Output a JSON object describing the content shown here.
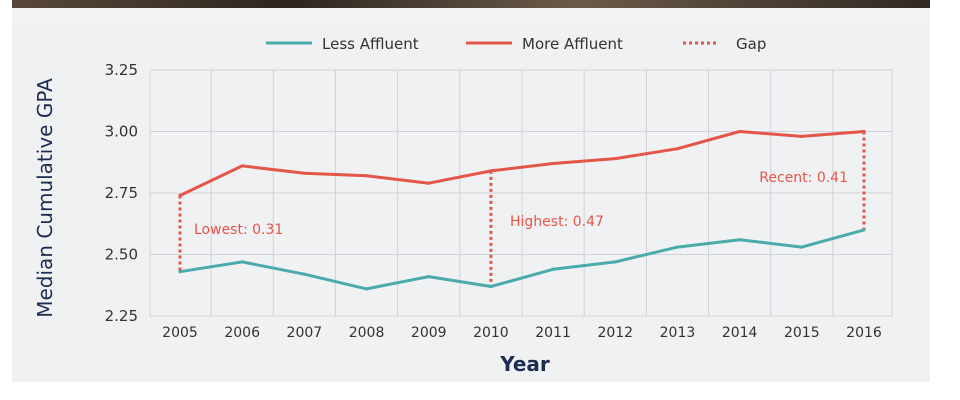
{
  "chart_data": {
    "type": "line",
    "x": [
      "2005",
      "2006",
      "2007",
      "2008",
      "2009",
      "2010",
      "2011",
      "2012",
      "2013",
      "2014",
      "2015",
      "2016"
    ],
    "ylabel": "Median Cumulative GPA",
    "xlabel": "Year",
    "ylim": [
      2.25,
      3.25
    ],
    "yticks": [
      "2.25",
      "2.50",
      "2.75",
      "3.00",
      "3.25"
    ],
    "ytick_values": [
      2.25,
      2.5,
      2.75,
      3.0,
      3.25
    ],
    "grid": "on",
    "legend": "top",
    "series": [
      {
        "name": "Less Affluent",
        "color": "#4aabaa",
        "values": [
          2.43,
          2.47,
          2.42,
          2.36,
          2.41,
          2.37,
          2.44,
          2.47,
          2.53,
          2.56,
          2.53,
          2.6
        ]
      },
      {
        "name": "More Affluent",
        "color": "#e5564a",
        "values": [
          2.74,
          2.86,
          2.83,
          2.82,
          2.79,
          2.84,
          2.87,
          2.89,
          2.93,
          3.0,
          2.98,
          3.0
        ]
      }
    ],
    "gap_legend": "Gap",
    "gap_color": "#e5564a",
    "annotations": [
      {
        "text": "Lowest: 0.31",
        "year": "2005"
      },
      {
        "text": "Highest: 0.47",
        "year": "2010"
      },
      {
        "text": "Recent: 0.41",
        "year": "2016"
      }
    ]
  }
}
